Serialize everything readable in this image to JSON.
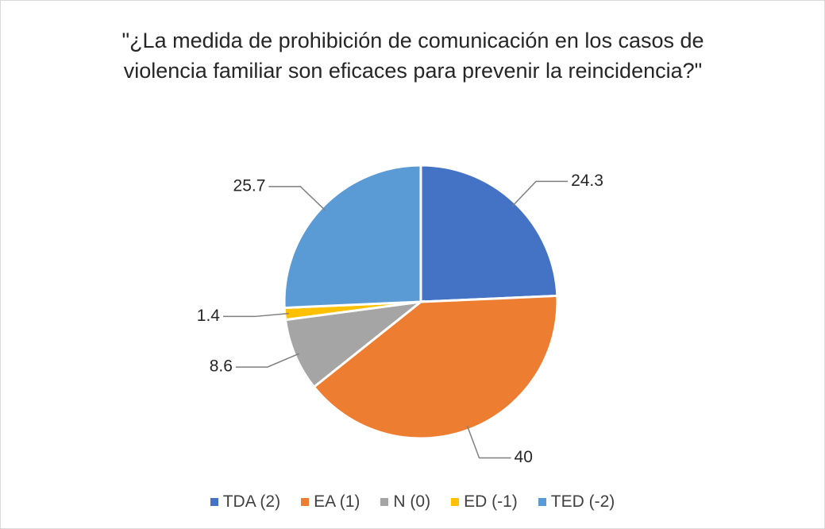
{
  "chart_data": {
    "type": "pie",
    "title": "\"¿La medida de prohibición de comunicación en los casos de violencia familiar son eficaces para prevenir la reincidencia?\"",
    "categories": [
      "TDA (2)",
      "EA (1)",
      "N (0)",
      "ED (-1)",
      "TED (-2)"
    ],
    "values": [
      24.3,
      40,
      8.6,
      1.4,
      25.7
    ],
    "colors": [
      "#4472c4",
      "#ed7d31",
      "#a5a5a5",
      "#ffc000",
      "#5b9bd5"
    ],
    "legend": "bottom"
  }
}
